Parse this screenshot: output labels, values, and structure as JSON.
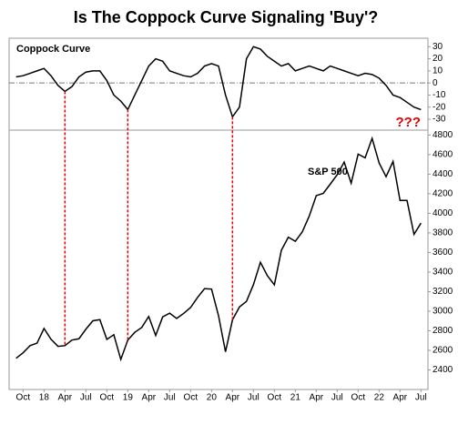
{
  "title": "Is The Coppock Curve Signaling 'Buy'?",
  "chart_data": [
    {
      "type": "line",
      "label": "Coppock Curve",
      "annotation": "???",
      "annotation_color": "#e00000",
      "x": [
        "2017-09",
        "2017-10",
        "2017-11",
        "2017-12",
        "2018-01",
        "2018-02",
        "2018-03",
        "2018-04",
        "2018-05",
        "2018-06",
        "2018-07",
        "2018-08",
        "2018-09",
        "2018-10",
        "2018-11",
        "2018-12",
        "2019-01",
        "2019-02",
        "2019-03",
        "2019-04",
        "2019-05",
        "2019-06",
        "2019-07",
        "2019-08",
        "2019-09",
        "2019-10",
        "2019-11",
        "2019-12",
        "2020-01",
        "2020-02",
        "2020-03",
        "2020-04",
        "2020-05",
        "2020-06",
        "2020-07",
        "2020-08",
        "2020-09",
        "2020-10",
        "2020-11",
        "2020-12",
        "2021-01",
        "2021-02",
        "2021-03",
        "2021-04",
        "2021-05",
        "2021-06",
        "2021-07",
        "2021-08",
        "2021-09",
        "2021-10",
        "2021-11",
        "2021-12",
        "2022-01",
        "2022-02",
        "2022-03",
        "2022-04",
        "2022-05",
        "2022-06",
        "2022-07"
      ],
      "values": [
        5,
        6,
        8,
        10,
        12,
        6,
        -2,
        -7,
        -3,
        5,
        9,
        10,
        10,
        2,
        -10,
        -15,
        -22,
        -10,
        2,
        14,
        20,
        18,
        10,
        8,
        6,
        5,
        8,
        14,
        16,
        14,
        -10,
        -28,
        -20,
        20,
        30,
        28,
        22,
        18,
        14,
        16,
        10,
        12,
        14,
        12,
        10,
        14,
        12,
        10,
        8,
        6,
        8,
        7,
        4,
        -2,
        -10,
        -12,
        -16,
        -20,
        -22
      ],
      "color": "#000000",
      "zero_line": true,
      "xlim": [
        "2017-08",
        "2022-08"
      ],
      "ylim": [
        -39,
        37
      ],
      "yticks": [
        30,
        20,
        10,
        0,
        -10,
        -20,
        -30
      ],
      "buy_signals": [
        "2018-04",
        "2019-01",
        "2020-04"
      ],
      "signal_color": "#e00000"
    },
    {
      "type": "line",
      "label": "S&P 500",
      "x": [
        "2017-09",
        "2017-10",
        "2017-11",
        "2017-12",
        "2018-01",
        "2018-02",
        "2018-03",
        "2018-04",
        "2018-05",
        "2018-06",
        "2018-07",
        "2018-08",
        "2018-09",
        "2018-10",
        "2018-11",
        "2018-12",
        "2019-01",
        "2019-02",
        "2019-03",
        "2019-04",
        "2019-05",
        "2019-06",
        "2019-07",
        "2019-08",
        "2019-09",
        "2019-10",
        "2019-11",
        "2019-12",
        "2020-01",
        "2020-02",
        "2020-03",
        "2020-04",
        "2020-05",
        "2020-06",
        "2020-07",
        "2020-08",
        "2020-09",
        "2020-10",
        "2020-11",
        "2020-12",
        "2021-01",
        "2021-02",
        "2021-03",
        "2021-04",
        "2021-05",
        "2021-06",
        "2021-07",
        "2021-08",
        "2021-09",
        "2021-10",
        "2021-11",
        "2021-12",
        "2022-01",
        "2022-02",
        "2022-03",
        "2022-04",
        "2022-05",
        "2022-06",
        "2022-07"
      ],
      "values": [
        2519,
        2575,
        2648,
        2674,
        2824,
        2714,
        2641,
        2648,
        2705,
        2718,
        2816,
        2902,
        2914,
        2712,
        2760,
        2507,
        2704,
        2784,
        2834,
        2946,
        2752,
        2942,
        2980,
        2926,
        2977,
        3038,
        3141,
        3231,
        3226,
        2954,
        2585,
        2912,
        3044,
        3100,
        3271,
        3500,
        3363,
        3270,
        3622,
        3756,
        3714,
        3811,
        3973,
        4181,
        4204,
        4298,
        4395,
        4523,
        4308,
        4605,
        4567,
        4766,
        4516,
        4374,
        4530,
        4132,
        4132,
        3785,
        3900
      ],
      "color": "#000000",
      "xlim": [
        "2017-08",
        "2022-08"
      ],
      "ylim": [
        2200,
        4850
      ],
      "yticks": [
        4800,
        4600,
        4400,
        4200,
        4000,
        3800,
        3600,
        3400,
        3200,
        3000,
        2800,
        2600,
        2400
      ],
      "xticks": [
        {
          "value": "2017-10",
          "label": "Oct"
        },
        {
          "value": "2018-01",
          "label": "18"
        },
        {
          "value": "2018-04",
          "label": "Apr"
        },
        {
          "value": "2018-07",
          "label": "Jul"
        },
        {
          "value": "2018-10",
          "label": "Oct"
        },
        {
          "value": "2019-01",
          "label": "19"
        },
        {
          "value": "2019-04",
          "label": "Apr"
        },
        {
          "value": "2019-07",
          "label": "Jul"
        },
        {
          "value": "2019-10",
          "label": "Oct"
        },
        {
          "value": "2020-01",
          "label": "20"
        },
        {
          "value": "2020-04",
          "label": "Apr"
        },
        {
          "value": "2020-07",
          "label": "Jul"
        },
        {
          "value": "2020-10",
          "label": "Oct"
        },
        {
          "value": "2021-01",
          "label": "21"
        },
        {
          "value": "2021-04",
          "label": "Apr"
        },
        {
          "value": "2021-07",
          "label": "Jul"
        },
        {
          "value": "2021-10",
          "label": "Oct"
        },
        {
          "value": "2022-01",
          "label": "22"
        },
        {
          "value": "2022-04",
          "label": "Apr"
        },
        {
          "value": "2022-07",
          "label": "Jul"
        }
      ]
    }
  ]
}
